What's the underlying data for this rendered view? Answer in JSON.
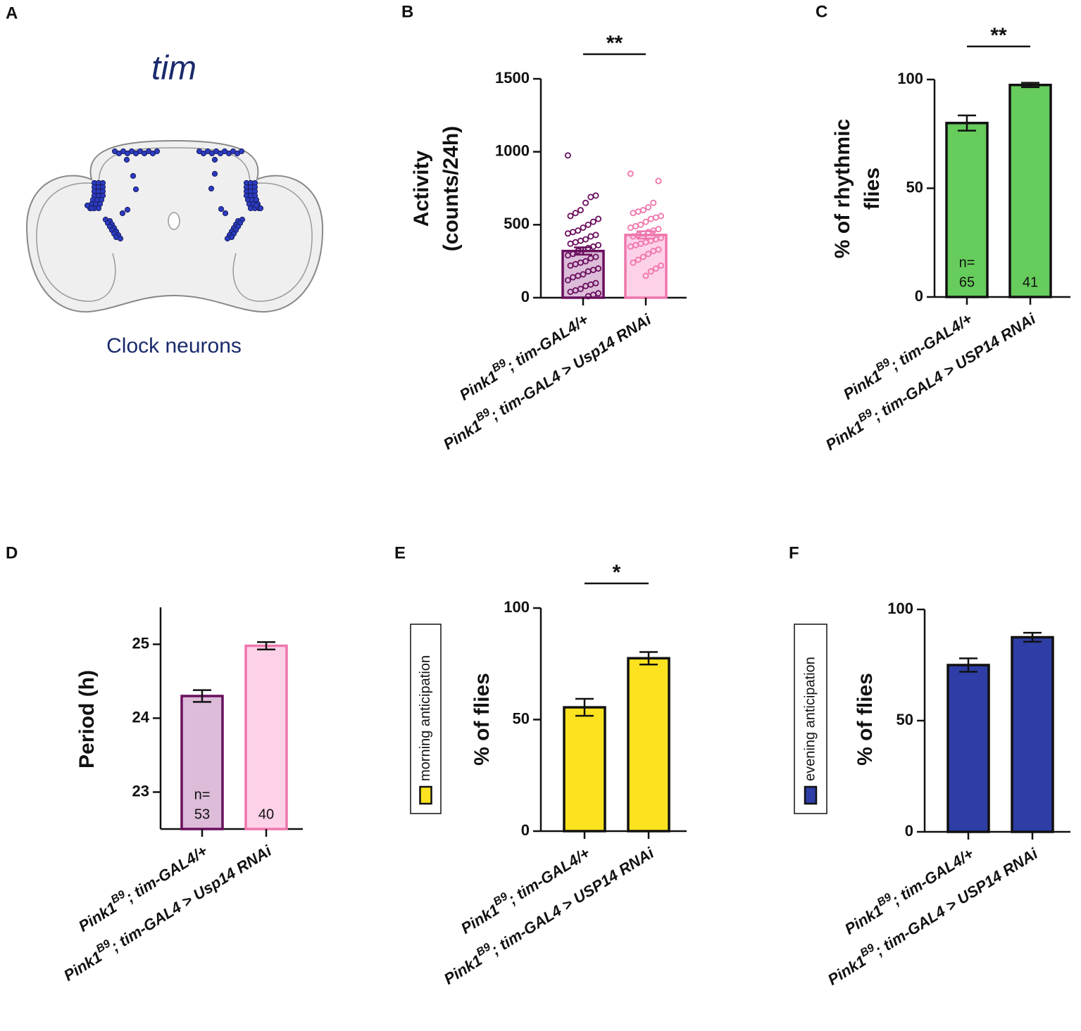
{
  "diagram": {
    "panel_label": "A",
    "title": "tim",
    "caption": "Clock neurons"
  },
  "chart_data": [
    {
      "type": "bar_scatter",
      "panel_label": "B",
      "y_label": [
        "Activity",
        "(counts/24h)"
      ],
      "categories": [
        [
          "Pink1",
          "B9",
          "; tim-GAL4/+"
        ],
        [
          "Pink1",
          "B9",
          "; tim-GAL4 > Usp14 RNAi"
        ]
      ],
      "values": [
        320,
        430
      ],
      "errors": [
        25,
        25
      ],
      "colors": [
        "#dcbcd9",
        "#fdd2e8"
      ],
      "edge_colors": [
        "#6a0f5e",
        "#ef76ac"
      ],
      "points": [
        [
          975,
          700,
          690,
          650,
          600,
          580,
          560,
          540,
          520,
          500,
          480,
          460,
          450,
          440,
          430,
          420,
          400,
          390,
          380,
          370,
          360,
          350,
          340,
          330,
          320,
          300,
          290,
          280,
          270,
          250,
          240,
          230,
          220,
          200,
          190,
          180,
          160,
          150,
          140,
          120,
          100,
          90,
          80,
          60,
          50,
          40,
          30,
          20,
          10
        ],
        [
          850,
          800,
          650,
          620,
          600,
          590,
          580,
          560,
          550,
          540,
          520,
          500,
          490,
          480,
          470,
          460,
          450,
          440,
          430,
          420,
          410,
          400,
          390,
          380,
          370,
          360,
          350,
          330,
          320,
          300,
          280,
          260,
          240,
          220,
          200,
          180,
          150
        ]
      ],
      "ylim": [
        0,
        1500
      ],
      "yticks": [
        0,
        500,
        1000,
        1500
      ],
      "significance": "**"
    },
    {
      "type": "bar",
      "panel_label": "C",
      "y_label": [
        "% of rhythmic",
        "flies"
      ],
      "categories": [
        [
          "Pink1",
          "B9",
          "; tim-GAL4/+"
        ],
        [
          "Pink1",
          "B9",
          "; tim-GAL4 > USP14 RNAi"
        ]
      ],
      "values": [
        80,
        97.5
      ],
      "errors": [
        3.5,
        1
      ],
      "colors": [
        "#66cc5c",
        "#66cc5c"
      ],
      "edge_colors": [
        "#111111",
        "#111111"
      ],
      "bar_labels": [
        [
          "n=",
          "65"
        ],
        [
          "41"
        ]
      ],
      "ylim": [
        0,
        100
      ],
      "yticks": [
        0,
        50,
        100
      ],
      "significance": "**"
    },
    {
      "type": "bar",
      "panel_label": "D",
      "y_label": [
        "Period (h)"
      ],
      "categories": [
        [
          "Pink1",
          "B9",
          "; tim-GAL4/+"
        ],
        [
          "Pink1",
          "B9",
          "; tim-GAL4 > Usp14 RNAi"
        ]
      ],
      "values": [
        24.3,
        24.98
      ],
      "errors": [
        0.08,
        0.05
      ],
      "colors": [
        "#dcbcd9",
        "#fdd2e8"
      ],
      "edge_colors": [
        "#6a0f5e",
        "#ef76ac"
      ],
      "bar_labels": [
        [
          "n=",
          "53"
        ],
        [
          "40"
        ]
      ],
      "ylim": [
        22.5,
        25.5
      ],
      "yticks": [
        23,
        24,
        25
      ]
    },
    {
      "type": "bar",
      "panel_label": "E",
      "y_label": [
        "% of flies"
      ],
      "categories": [
        [
          "Pink1",
          "B9",
          "; tim-GAL4/+"
        ],
        [
          "Pink1",
          "B9",
          "; tim-GAL4 > USP14 RNAi"
        ]
      ],
      "values": [
        55.5,
        77.5
      ],
      "errors": [
        3.8,
        2.8
      ],
      "colors": [
        "#fde31f",
        "#fde31f"
      ],
      "edge_colors": [
        "#111111",
        "#111111"
      ],
      "legend": {
        "label": "morning anticipation",
        "color": "#fde31f"
      },
      "ylim": [
        0,
        100
      ],
      "yticks": [
        0,
        50,
        100
      ],
      "significance": "*"
    },
    {
      "type": "bar",
      "panel_label": "F",
      "y_label": [
        "% of flies"
      ],
      "categories": [
        [
          "Pink1",
          "B9",
          "; tim-GAL4/+"
        ],
        [
          "Pink1",
          "B9",
          "; tim-GAL4 > USP14 RNAi"
        ]
      ],
      "values": [
        75,
        87.5
      ],
      "errors": [
        3,
        2
      ],
      "colors": [
        "#2e3ea6",
        "#2e3ea6"
      ],
      "edge_colors": [
        "#111111",
        "#111111"
      ],
      "legend": {
        "label": "evening anticipation",
        "color": "#2e3ea6"
      },
      "ylim": [
        0,
        100
      ],
      "yticks": [
        0,
        50,
        100
      ]
    }
  ]
}
